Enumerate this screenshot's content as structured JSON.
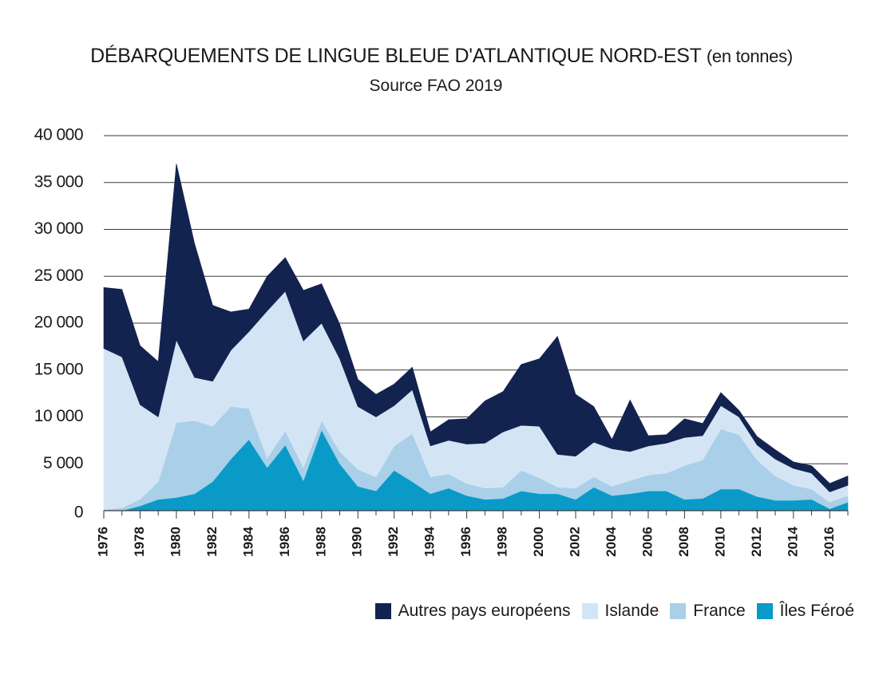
{
  "chart_data": {
    "type": "area",
    "stacked": true,
    "title": "DÉBARQUEMENTS DE LINGUE BLEUE D'ATLANTIQUE NORD-EST",
    "title_unit": "(en tonnes)",
    "subtitle": "Source FAO 2019",
    "xlabel": "",
    "ylabel": "",
    "ylim": [
      0,
      40000
    ],
    "grid": true,
    "legend_position": "bottom-right",
    "y_ticks": [
      0,
      5000,
      10000,
      15000,
      20000,
      25000,
      30000,
      35000,
      40000
    ],
    "y_tick_labels": [
      "0",
      "5 000",
      "10 000",
      "15 000",
      "20 000",
      "25 000",
      "30 000",
      "35 000",
      "40 000"
    ],
    "x": [
      1976,
      1977,
      1978,
      1979,
      1980,
      1981,
      1982,
      1983,
      1984,
      1985,
      1986,
      1987,
      1988,
      1989,
      1990,
      1991,
      1992,
      1993,
      1994,
      1995,
      1996,
      1997,
      1998,
      1999,
      2000,
      2001,
      2002,
      2003,
      2004,
      2005,
      2006,
      2007,
      2008,
      2009,
      2010,
      2011,
      2012,
      2013,
      2014,
      2015,
      2016,
      2017
    ],
    "x_tick_labels": [
      "1976",
      "1978",
      "1980",
      "1982",
      "1984",
      "1986",
      "1988",
      "1990",
      "1992",
      "1994",
      "1996",
      "1998",
      "2000",
      "2002",
      "2004",
      "2006",
      "2008",
      "2010",
      "2012",
      "2014",
      "2016"
    ],
    "series": [
      {
        "name": "Îles Féroé",
        "color": "#0a9ac7",
        "values": [
          0,
          0,
          500,
          1200,
          1400,
          1800,
          3100,
          5500,
          7600,
          4600,
          7000,
          3200,
          8600,
          5000,
          2600,
          2100,
          4300,
          3100,
          1800,
          2400,
          1600,
          1200,
          1300,
          2100,
          1800,
          1800,
          1200,
          2500,
          1600,
          1800,
          2100,
          2100,
          1200,
          1300,
          2300,
          2300,
          1500,
          1100,
          1100,
          1200,
          200,
          900
        ]
      },
      {
        "name": "France",
        "color": "#a9cfe9",
        "values": [
          100,
          300,
          700,
          1900,
          8000,
          7800,
          5900,
          5600,
          3300,
          1000,
          1500,
          1400,
          1000,
          1300,
          1800,
          1500,
          2600,
          5100,
          1800,
          1500,
          1300,
          1200,
          1200,
          2200,
          1700,
          700,
          1200,
          1100,
          1000,
          1400,
          1700,
          1900,
          3600,
          4100,
          6400,
          5800,
          3900,
          2600,
          1600,
          1100,
          700,
          700
        ]
      },
      {
        "name": "Islande",
        "color": "#d3e5f4",
        "values": [
          17200,
          16100,
          10100,
          6900,
          8800,
          4600,
          4800,
          6000,
          8200,
          15700,
          14900,
          13500,
          10400,
          9900,
          6700,
          6400,
          4300,
          4700,
          3300,
          3600,
          4200,
          4800,
          5900,
          4800,
          5500,
          3500,
          3400,
          3700,
          4000,
          3100,
          3100,
          3200,
          3000,
          2600,
          2500,
          1900,
          1600,
          1800,
          1800,
          1700,
          1100,
          1100
        ]
      },
      {
        "name": "Autres pays européens",
        "color": "#13234f",
        "values": [
          6500,
          7200,
          6300,
          5900,
          18800,
          14300,
          8100,
          4100,
          2400,
          3700,
          3600,
          5400,
          4200,
          3700,
          2900,
          2400,
          2300,
          2400,
          1500,
          2200,
          2700,
          4500,
          4300,
          6500,
          7200,
          12600,
          6600,
          3800,
          1000,
          5500,
          1100,
          900,
          2000,
          1300,
          1400,
          700,
          900,
          1000,
          700,
          800,
          900,
          1000
        ]
      }
    ]
  },
  "legend": [
    {
      "label": "Autres pays européens",
      "color": "#13234f"
    },
    {
      "label": "Islande",
      "color": "#d3e5f4"
    },
    {
      "label": "France",
      "color": "#a9cfe9"
    },
    {
      "label": "Îles Féroé",
      "color": "#0a9ac7"
    }
  ]
}
